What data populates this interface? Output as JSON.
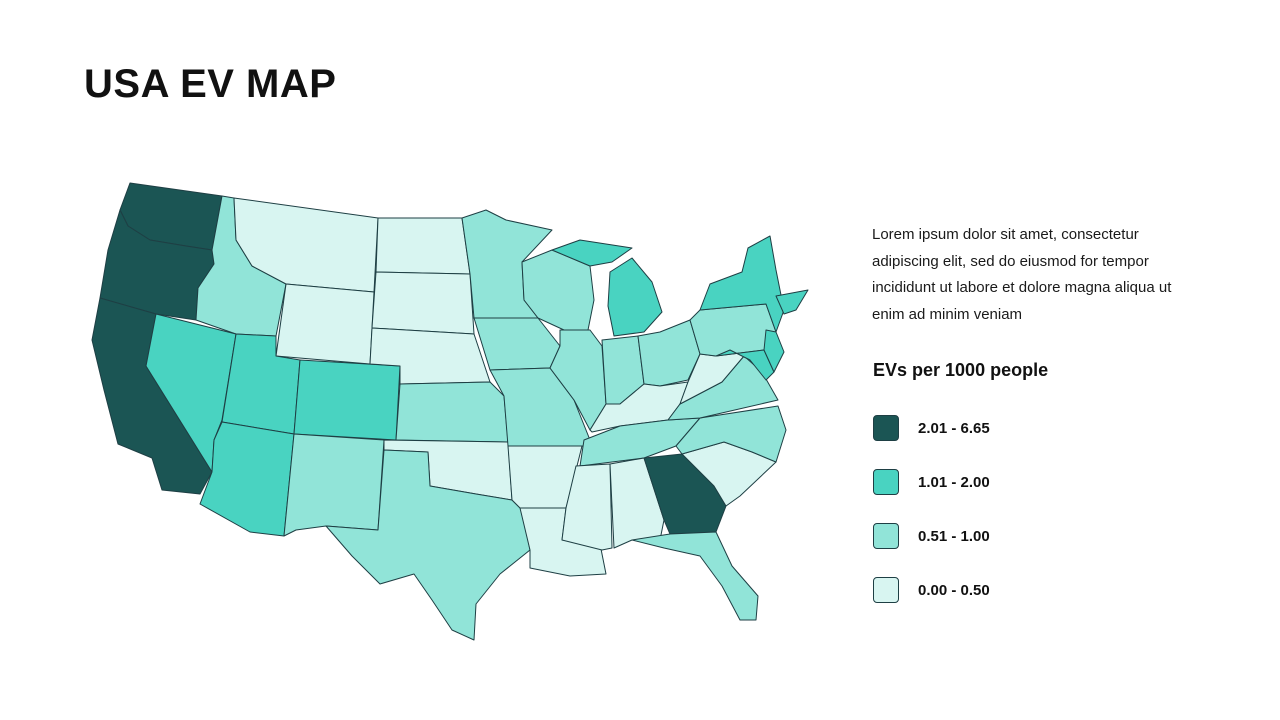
{
  "title": "USA EV MAP",
  "description": "Lorem ipsum dolor sit amet, consectetur adipiscing elit, sed do eiusmod for tempor incididunt ut labore et dolore magna aliqua ut enim ad minim veniam",
  "legend": {
    "title": "EVs per 1000 people",
    "items": [
      {
        "label": "2.01 - 6.65",
        "color": "#1b5554"
      },
      {
        "label": "1.01 - 2.00",
        "color": "#49d3c1"
      },
      {
        "label": "0.51 - 1.00",
        "color": "#91e4d8"
      },
      {
        "label": "0.00 - 0.50",
        "color": "#d8f5f1"
      }
    ]
  },
  "map_data": {
    "type": "choropleth",
    "region": "United States",
    "states": [
      {
        "name": "Washington",
        "tier": 0
      },
      {
        "name": "Oregon",
        "tier": 0
      },
      {
        "name": "California",
        "tier": 0
      },
      {
        "name": "Georgia",
        "tier": 0
      },
      {
        "name": "Nevada",
        "tier": 1
      },
      {
        "name": "Utah",
        "tier": 1
      },
      {
        "name": "Colorado",
        "tier": 1
      },
      {
        "name": "Arizona",
        "tier": 1
      },
      {
        "name": "Michigan",
        "tier": 1
      },
      {
        "name": "New York",
        "tier": 1
      },
      {
        "name": "Maryland",
        "tier": 1
      },
      {
        "name": "New Jersey",
        "tier": 1
      },
      {
        "name": "Massachusetts",
        "tier": 1
      },
      {
        "name": "Idaho",
        "tier": 2
      },
      {
        "name": "New Mexico",
        "tier": 2
      },
      {
        "name": "Texas",
        "tier": 2
      },
      {
        "name": "Kansas",
        "tier": 2
      },
      {
        "name": "Minnesota",
        "tier": 2
      },
      {
        "name": "Iowa",
        "tier": 2
      },
      {
        "name": "Missouri",
        "tier": 2
      },
      {
        "name": "Wisconsin",
        "tier": 2
      },
      {
        "name": "Illinois",
        "tier": 2
      },
      {
        "name": "Indiana",
        "tier": 2
      },
      {
        "name": "Ohio",
        "tier": 2
      },
      {
        "name": "Pennsylvania",
        "tier": 2
      },
      {
        "name": "Virginia",
        "tier": 2
      },
      {
        "name": "North Carolina",
        "tier": 2
      },
      {
        "name": "Tennessee",
        "tier": 2
      },
      {
        "name": "Florida",
        "tier": 2
      },
      {
        "name": "Montana",
        "tier": 3
      },
      {
        "name": "Wyoming",
        "tier": 3
      },
      {
        "name": "North Dakota",
        "tier": 3
      },
      {
        "name": "South Dakota",
        "tier": 3
      },
      {
        "name": "Nebraska",
        "tier": 3
      },
      {
        "name": "Oklahoma",
        "tier": 3
      },
      {
        "name": "Arkansas",
        "tier": 3
      },
      {
        "name": "Louisiana",
        "tier": 3
      },
      {
        "name": "Mississippi",
        "tier": 3
      },
      {
        "name": "Alabama",
        "tier": 3
      },
      {
        "name": "Kentucky",
        "tier": 3
      },
      {
        "name": "West Virginia",
        "tier": 3
      },
      {
        "name": "South Carolina",
        "tier": 3
      }
    ]
  }
}
